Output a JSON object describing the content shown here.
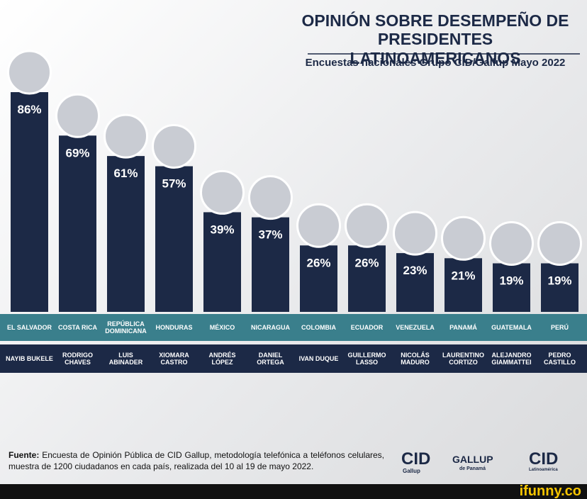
{
  "chart_data": {
    "type": "bar",
    "title": [
      "OPINIÓN SOBRE DESEMPEÑO DE",
      "PRESIDENTES LATINOAMERICANOS"
    ],
    "subtitle": "Encuestas nacionales Grupo CID/Gallup Mayo 2022",
    "categories": [
      "EL SALVADOR",
      "COSTA RICA",
      "REPÚBLICA DOMINICANA",
      "HONDURAS",
      "MÉXICO",
      "NICARAGUA",
      "COLOMBIA",
      "ECUADOR",
      "VENEZUELA",
      "PANAMÁ",
      "GUATEMALA",
      "PERÚ"
    ],
    "presidents": [
      "NAYIB BUKELE",
      "RODRIGO CHAVES",
      "LUIS ABINADER",
      "XIOMARA CASTRO",
      "ANDRÉS LÓPEZ",
      "DANIEL ORTEGA",
      "IVAN DUQUE",
      "GUILLERMO LASSO",
      "NICOLÁS MADURO",
      "LAURENTINO CORTIZO",
      "ALEJANDRO GIAMMATTEI",
      "PEDRO CASTILLO"
    ],
    "values": [
      86,
      69,
      61,
      57,
      39,
      37,
      26,
      26,
      23,
      21,
      19,
      19
    ],
    "value_labels": [
      "86%",
      "69%",
      "61%",
      "57%",
      "39%",
      "37%",
      "26%",
      "26%",
      "23%",
      "21%",
      "19%",
      "19%"
    ],
    "color": "#1c2946"
  },
  "footer": {
    "source_label": "Fuente:",
    "source_text": "Encuesta de Opinión Pública de CID Gallup, metodología telefónica a teléfonos celulares, muestra de 1200 ciudadanos en cada país, realizada del 10 al 19 de mayo 2022.",
    "logos": [
      "CID",
      "Gallup",
      "GALLUP",
      "de Panamá",
      "CID",
      "Latinoamérica"
    ]
  },
  "watermark": "ifunny.co"
}
